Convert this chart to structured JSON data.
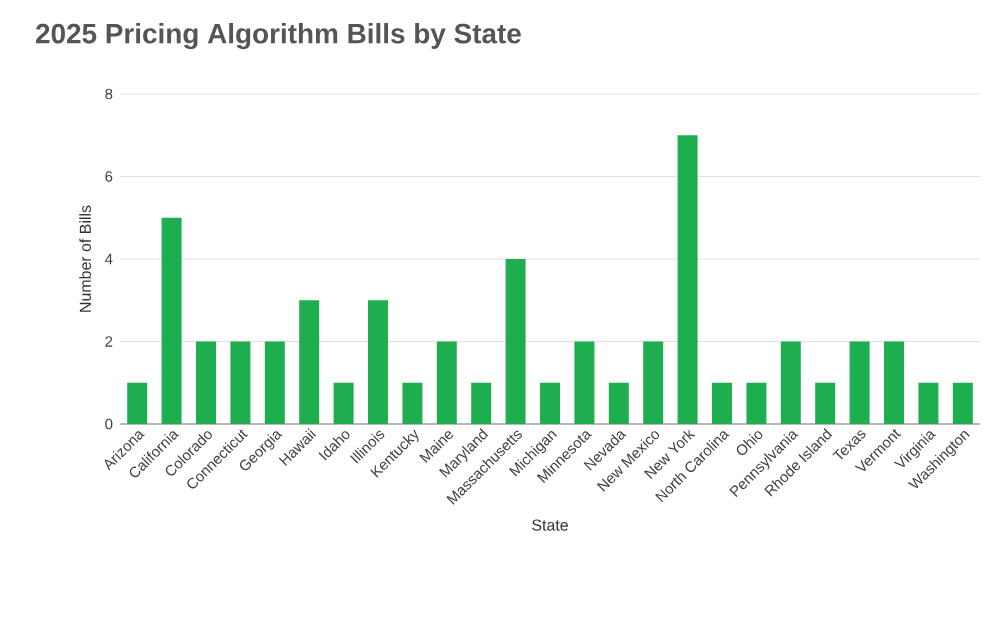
{
  "chart_data": {
    "type": "bar",
    "title": "2025 Pricing Algorithm Bills by State",
    "xlabel": "State",
    "ylabel": "Number of Bills",
    "categories": [
      "Arizona",
      "California",
      "Colorado",
      "Connecticut",
      "Georgia",
      "Hawaii",
      "Idaho",
      "Illinois",
      "Kentucky",
      "Maine",
      "Maryland",
      "Massachusetts",
      "Michigan",
      "Minnesota",
      "Nevada",
      "New Mexico",
      "New York",
      "North Carolina",
      "Ohio",
      "Pennsylvania",
      "Rhode Island",
      "Texas",
      "Vermont",
      "Virginia",
      "Washington"
    ],
    "values": [
      1,
      5,
      2,
      2,
      2,
      3,
      1,
      3,
      1,
      2,
      1,
      4,
      1,
      2,
      1,
      2,
      7,
      1,
      1,
      2,
      1,
      2,
      2,
      1,
      1
    ],
    "color": "#1fae4f",
    "ylim": [
      0,
      8
    ],
    "yticks": [
      0,
      2,
      4,
      6,
      8
    ],
    "grid": "y"
  }
}
